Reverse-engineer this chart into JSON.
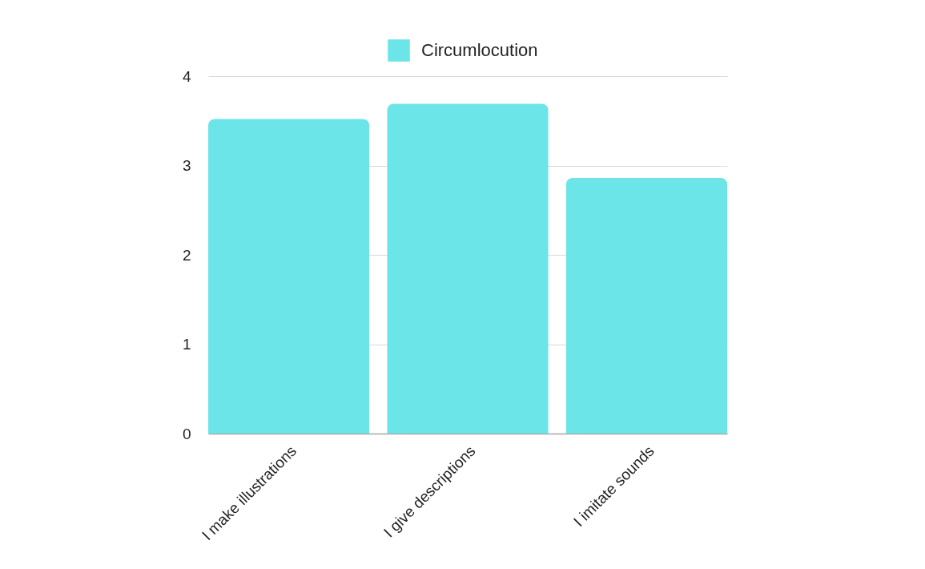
{
  "chart_data": {
    "type": "bar",
    "categories": [
      "I make illustrations",
      "I give descriptions",
      "I imitate sounds"
    ],
    "series": [
      {
        "name": "Circumlocution",
        "color": "#6ce5e8",
        "values": [
          3.52,
          3.69,
          2.86
        ]
      }
    ],
    "ylim": [
      0,
      4
    ],
    "yticks": [
      0,
      1,
      2,
      3,
      4
    ],
    "grid": "y",
    "legend": "top"
  }
}
